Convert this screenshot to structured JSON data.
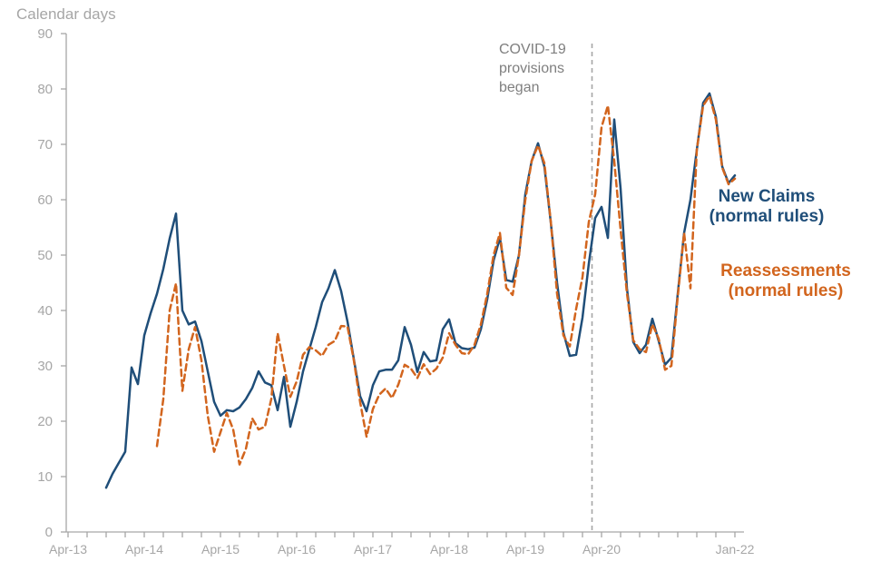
{
  "page": {
    "background": "#ffffff"
  },
  "chart_data": {
    "type": "line",
    "title": "Calendar days",
    "x_axis": {
      "range_months": [
        0,
        105
      ],
      "minor_tick_every_months": 3,
      "tick_labels": [
        {
          "label": "Apr-13",
          "month": 0
        },
        {
          "label": "Apr-14",
          "month": 12
        },
        {
          "label": "Apr-15",
          "month": 24
        },
        {
          "label": "Apr-16",
          "month": 36
        },
        {
          "label": "Apr-17",
          "month": 48
        },
        {
          "label": "Apr-18",
          "month": 60
        },
        {
          "label": "Apr-19",
          "month": 72
        },
        {
          "label": "Apr-20",
          "month": 84
        },
        {
          "label": "Jan-22",
          "month": 105
        }
      ]
    },
    "y_axis": {
      "min": 0,
      "max": 90,
      "step": 10
    },
    "annotation": {
      "line1": "COVID-19",
      "line2": "provisions",
      "line3": "began",
      "at_month": 82.5,
      "color": "#7f7f7f"
    },
    "colors": {
      "new_claims": "#1f4e79",
      "reassessments": "#d2651e",
      "axis": "#a6a6a6"
    },
    "series": [
      {
        "id": "new_claims",
        "name": "New Claims",
        "name_line2": "(normal rules)",
        "color": "#1f4e79",
        "line_style": "solid",
        "start": "Oct-13",
        "start_month_index": 6,
        "monthly_values": [
          8,
          10.5,
          12.5,
          14.5,
          29.7,
          26.7,
          35.5,
          39.5,
          43,
          47.5,
          53,
          57.5,
          40,
          37.5,
          38,
          34.5,
          29,
          23.5,
          21,
          22,
          21.8,
          22.5,
          24,
          26,
          29,
          27,
          26.5,
          22,
          28,
          19,
          23.5,
          29,
          33,
          37,
          41.5,
          44,
          47.3,
          43.5,
          38,
          31.2,
          24.5,
          21.8,
          26.5,
          29,
          29.3,
          29.3,
          31,
          37,
          33.8,
          28.9,
          32.5,
          30.8,
          31,
          36.6,
          38.4,
          34.1,
          33.2,
          33,
          33.3,
          36.6,
          42,
          49,
          53.1,
          45.5,
          45.2,
          50,
          61,
          67,
          70.2,
          66,
          56,
          45,
          36,
          31.8,
          32,
          38.7,
          48.5,
          56.7,
          58.7,
          53.1,
          74.5,
          62,
          44,
          34.3,
          32.3,
          33.8,
          38.5,
          34.5,
          30.2,
          31.5,
          43,
          54,
          60,
          69,
          77.5,
          79.2,
          75,
          66,
          63,
          64.4
        ]
      },
      {
        "id": "reassessments",
        "name": "Reassessments",
        "name_line2": "(normal rules)",
        "color": "#d2651e",
        "line_style": "dashed",
        "start": "Jun-14",
        "start_month_index": 14,
        "monthly_values": [
          15.5,
          24,
          40,
          44.9,
          25.5,
          33,
          37,
          31,
          21,
          14.5,
          18,
          21.5,
          18.5,
          12.2,
          15,
          20.5,
          18.5,
          19,
          24,
          35.9,
          30,
          24.4,
          27.2,
          32,
          33.4,
          32.8,
          31.8,
          33.8,
          34.5,
          37.2,
          37.1,
          31,
          23.4,
          17.2,
          22.2,
          24.8,
          25.9,
          24.2,
          26.6,
          30.2,
          29.5,
          27.8,
          30.3,
          28.5,
          29.5,
          31.5,
          35.9,
          33.8,
          32.3,
          32.1,
          33.8,
          37.5,
          43,
          50,
          54,
          44.1,
          42.8,
          50,
          60,
          67,
          69.8,
          66.6,
          56.2,
          43,
          35.5,
          33.5,
          40.3,
          46,
          56,
          61,
          73.1,
          77,
          67,
          54.6,
          43.1,
          34.6,
          33,
          32.5,
          37.5,
          34.9,
          29.3,
          30,
          42.5,
          54,
          44,
          69,
          77,
          78.7,
          74.5,
          65.8,
          62.8,
          63.8
        ]
      }
    ]
  }
}
